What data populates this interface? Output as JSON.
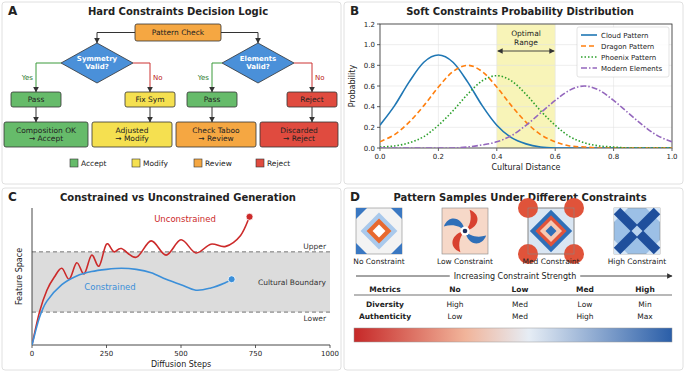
{
  "diagram": {
    "panel_label": "A",
    "title": "Hard Constraints Decision Logic",
    "start": {
      "text": "Pattern Check",
      "color": "#f5a742"
    },
    "checks": [
      {
        "question": "Symmetry Valid?",
        "color": "#4a90d9",
        "yes_label": "Yes",
        "no_label": "No",
        "yes": {
          "text": "Pass",
          "color": "#66bb6a"
        },
        "no": {
          "text": "Fix Sym",
          "color": "#f5e050"
        }
      },
      {
        "question": "Elements Valid?",
        "color": "#4a90d9",
        "yes_label": "Yes",
        "no_label": "No",
        "yes": {
          "text": "Pass",
          "color": "#66bb6a"
        },
        "no": {
          "text": "Reject",
          "color": "#e04b3f"
        }
      }
    ],
    "outcomes": [
      {
        "text": "Composition OK → Accept",
        "color": "#66bb6a"
      },
      {
        "text": "Adjusted → Modify",
        "color": "#f5e050"
      },
      {
        "text": "Check Taboo → Review",
        "color": "#f5a742"
      },
      {
        "text": "Discarded → Reject",
        "color": "#e04b3f"
      }
    ],
    "key": [
      {
        "label": "Accept",
        "color": "#66bb6a"
      },
      {
        "label": "Modify",
        "color": "#f5e050"
      },
      {
        "label": "Review",
        "color": "#f5a742"
      },
      {
        "label": "Reject",
        "color": "#e04b3f"
      }
    ]
  },
  "chart_data": [
    {
      "panel_label": "B",
      "type": "line",
      "title": "Soft Constraints Probability Distribution",
      "x_label": "Cultural Distance",
      "y_label": "Probability",
      "x": [
        0,
        0.05,
        0.1,
        0.15,
        0.2,
        0.25,
        0.3,
        0.35,
        0.4,
        0.45,
        0.5,
        0.55,
        0.6,
        0.65,
        0.7,
        0.75,
        0.8,
        0.85,
        0.9,
        0.95,
        1.0
      ],
      "xlim": [
        0,
        1
      ],
      "ylim": [
        0,
        1.2
      ],
      "xticks": [
        {
          "value": 0,
          "label": "0.0"
        },
        0.2,
        0.4,
        0.6,
        0.8,
        {
          "value": 1,
          "label": "1.0"
        }
      ],
      "yticks": [
        {
          "value": 0,
          "label": "0.0"
        },
        0.2,
        0.4,
        0.6,
        0.8,
        {
          "value": 1,
          "label": "1.0"
        },
        1.2
      ],
      "grid": true,
      "legend": "upper right",
      "annotations": [
        {
          "text": "Optimal Range",
          "x_range": [
            0.4,
            0.6
          ]
        }
      ],
      "series": [
        {
          "name": "Cloud Pattern",
          "color": "#1f77b4",
          "line_style": "solid",
          "values": [
            0.22,
            0.41,
            0.64,
            0.83,
            0.9,
            0.83,
            0.64,
            0.41,
            0.22,
            0.1,
            0.04,
            0.01,
            0,
            0,
            0,
            0,
            0,
            0,
            0,
            0,
            0
          ]
        },
        {
          "name": "Dragon Pattern",
          "color": "#ff7f0e",
          "line_style": "dashed",
          "values": [
            0.06,
            0.13,
            0.25,
            0.41,
            0.59,
            0.74,
            0.8,
            0.74,
            0.59,
            0.41,
            0.25,
            0.13,
            0.06,
            0.02,
            0.01,
            0,
            0,
            0,
            0,
            0,
            0
          ]
        },
        {
          "name": "Phoenix Pattern",
          "color": "#2ca02c",
          "line_style": "dotted",
          "values": [
            0.01,
            0.02,
            0.05,
            0.11,
            0.22,
            0.36,
            0.52,
            0.65,
            0.7,
            0.65,
            0.52,
            0.36,
            0.22,
            0.11,
            0.05,
            0.02,
            0.01,
            0,
            0,
            0,
            0
          ]
        },
        {
          "name": "Modern Elements",
          "color": "#9467bd",
          "line_style": "dashdot",
          "values": [
            0,
            0,
            0,
            0,
            0,
            0,
            0.01,
            0.03,
            0.06,
            0.12,
            0.22,
            0.34,
            0.46,
            0.56,
            0.6,
            0.56,
            0.46,
            0.34,
            0.22,
            0.12,
            0.06
          ]
        }
      ]
    },
    {
      "panel_label": "C",
      "type": "line",
      "title": "Constrained vs Unconstrained Generation",
      "x_label": "Diffusion Steps",
      "y_label": "Feature Space",
      "xlim": [
        0,
        1000
      ],
      "ylim": [
        0,
        1.25
      ],
      "xticks": [
        0,
        250,
        500,
        750,
        1000
      ],
      "yticks": [],
      "tick_labels": "x",
      "grid": false,
      "boundary": {
        "label": "Cultural Boundary",
        "upper": 0.85,
        "lower": 0.3,
        "upper_label": "Upper",
        "lower_label": "Lower"
      },
      "series": [
        {
          "name": "Unconstrained",
          "color": "#cc2a2a",
          "line_style": "solid",
          "marker": "end-circle",
          "x": [
            0,
            25,
            50,
            75,
            100,
            125,
            150,
            175,
            200,
            225,
            250,
            275,
            300,
            350,
            400,
            450,
            500,
            550,
            600,
            650,
            700,
            730
          ],
          "values": [
            0,
            0.3,
            0.5,
            0.62,
            0.7,
            0.6,
            0.75,
            0.65,
            0.82,
            0.72,
            0.92,
            0.85,
            0.88,
            0.8,
            0.95,
            0.82,
            0.96,
            0.84,
            0.92,
            0.9,
            1.0,
            1.17
          ]
        },
        {
          "name": "Constrained",
          "color": "#3b8fd9",
          "line_style": "solid",
          "marker": "end-circle",
          "x": [
            0,
            25,
            50,
            100,
            150,
            200,
            250,
            300,
            350,
            400,
            450,
            500,
            550,
            600,
            650,
            670
          ],
          "values": [
            0,
            0.25,
            0.4,
            0.55,
            0.63,
            0.67,
            0.69,
            0.7,
            0.69,
            0.66,
            0.6,
            0.55,
            0.5,
            0.52,
            0.57,
            0.6
          ]
        }
      ]
    }
  ],
  "pattern_samples": {
    "panel_label": "D",
    "title": "Pattern Samples Under Different Constraints",
    "samples": [
      "No Constraint",
      "Low Constraint",
      "Med Constraint",
      "High Constraint"
    ],
    "direction_label": "Increasing Constraint Strength",
    "table": {
      "header": [
        "Metrics",
        "No",
        "Low",
        "Med",
        "High"
      ],
      "rows": [
        [
          "Diversity",
          "High",
          "Med",
          "Low",
          "Min"
        ],
        [
          "Authenticity",
          "Low",
          "Med",
          "High",
          "Max"
        ]
      ]
    }
  }
}
